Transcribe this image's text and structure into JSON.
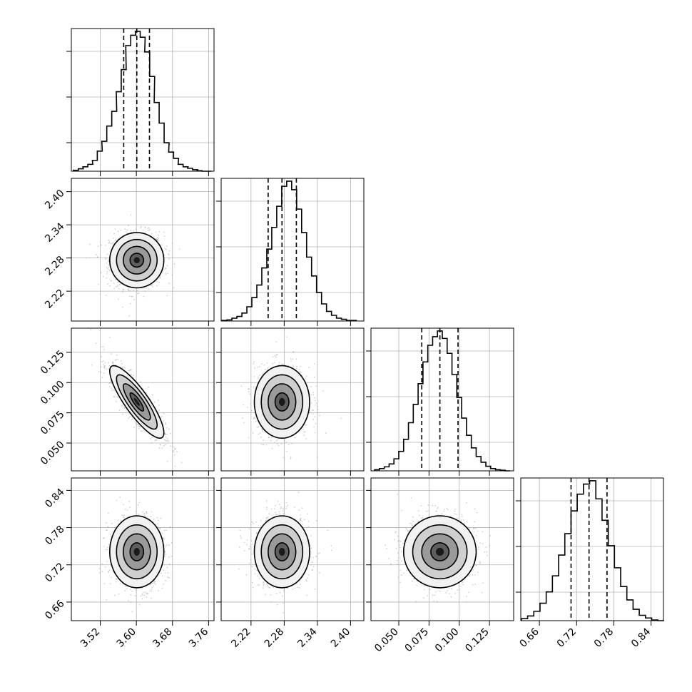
{
  "chart_data": {
    "type": "corner",
    "title": "",
    "colors": {
      "line": "#000000",
      "grid": "#b0b0b0",
      "scatter": "#a9a9a9",
      "density_low": "#d9d9d9",
      "density_high": "#000000"
    },
    "grid": true,
    "parameters": [
      {
        "index": 0,
        "range": [
          3.456,
          3.772
        ],
        "ticks": [
          3.52,
          3.6,
          3.68,
          3.76
        ],
        "tick_labels": [
          "3.52",
          "3.60",
          "3.68",
          "3.76"
        ],
        "quantiles": [
          3.572,
          3.601,
          3.629
        ],
        "mean": 3.601,
        "sd": 0.03,
        "hist_x": [
          3.466,
          3.477,
          3.487,
          3.498,
          3.508,
          3.519,
          3.529,
          3.54,
          3.551,
          3.561,
          3.572,
          3.582,
          3.593,
          3.603,
          3.614,
          3.624,
          3.635,
          3.645,
          3.656,
          3.667,
          3.677,
          3.688,
          3.698,
          3.709,
          3.719,
          3.73,
          3.74,
          3.751,
          3.761
        ],
        "hist_y": [
          2,
          5,
          9,
          14,
          22,
          41,
          61,
          92,
          122,
          162,
          207,
          256,
          277,
          285,
          273,
          243,
          193,
          140,
          98,
          58,
          39,
          26,
          14,
          9,
          6,
          3,
          1,
          0,
          0
        ]
      },
      {
        "index": 1,
        "range": [
          2.166,
          2.424
        ],
        "ticks": [
          2.22,
          2.28,
          2.34,
          2.4
        ],
        "tick_labels": [
          "2.22",
          "2.28",
          "2.34",
          "2.40"
        ],
        "quantiles": [
          2.251,
          2.276,
          2.302
        ],
        "mean": 2.276,
        "sd": 0.025,
        "hist_x": [
          2.172,
          2.181,
          2.19,
          2.199,
          2.208,
          2.217,
          2.226,
          2.235,
          2.244,
          2.253,
          2.262,
          2.271,
          2.28,
          2.289,
          2.298,
          2.307,
          2.316,
          2.325,
          2.334,
          2.343,
          2.352,
          2.361,
          2.37,
          2.379,
          2.388,
          2.397,
          2.406
        ],
        "hist_y": [
          1,
          2,
          5,
          8,
          14,
          25,
          41,
          63,
          93,
          126,
          164,
          201,
          236,
          245,
          230,
          196,
          155,
          112,
          79,
          50,
          30,
          17,
          10,
          5,
          3,
          1,
          1
        ]
      },
      {
        "index": 2,
        "range": [
          0.027,
          0.145
        ],
        "ticks": [
          0.05,
          0.075,
          0.1,
          0.125
        ],
        "tick_labels": [
          "0.050",
          "0.075",
          "0.100",
          "0.125"
        ],
        "quantiles": [
          0.069,
          0.084,
          0.099
        ],
        "mean": 0.084,
        "sd": 0.015,
        "hist_x": [
          0.032,
          0.036,
          0.04,
          0.044,
          0.048,
          0.052,
          0.056,
          0.06,
          0.064,
          0.068,
          0.072,
          0.076,
          0.08,
          0.084,
          0.088,
          0.092,
          0.096,
          0.1,
          0.104,
          0.108,
          0.112,
          0.116,
          0.12,
          0.124,
          0.128,
          0.132,
          0.136,
          0.14
        ],
        "hist_y": [
          2,
          4,
          7,
          12,
          21,
          34,
          55,
          84,
          116,
          152,
          190,
          219,
          234,
          244,
          231,
          205,
          168,
          128,
          92,
          62,
          40,
          25,
          15,
          8,
          4,
          2,
          1,
          0
        ]
      },
      {
        "index": 3,
        "range": [
          0.63,
          0.86
        ],
        "ticks": [
          0.66,
          0.72,
          0.78,
          0.84
        ],
        "tick_labels": [
          "0.66",
          "0.72",
          "0.78",
          "0.84"
        ],
        "quantiles": [
          0.711,
          0.74,
          0.769
        ],
        "mean": 0.741,
        "sd": 0.029,
        "hist_x": [
          0.636,
          0.646,
          0.656,
          0.666,
          0.676,
          0.686,
          0.696,
          0.706,
          0.716,
          0.726,
          0.736,
          0.746,
          0.756,
          0.766,
          0.776,
          0.786,
          0.796,
          0.806,
          0.816,
          0.826,
          0.836,
          0.846,
          0.856
        ],
        "hist_y": [
          3,
          7,
          14,
          26,
          43,
          67,
          98,
          130,
          164,
          189,
          204,
          209,
          182,
          150,
          112,
          79,
          51,
          31,
          17,
          8,
          4,
          1,
          0
        ]
      }
    ],
    "pairs": [
      {
        "x": 0,
        "y": 1,
        "corr": 0.0
      },
      {
        "x": 0,
        "y": 2,
        "corr": -0.85
      },
      {
        "x": 1,
        "y": 2,
        "corr": 0.0
      },
      {
        "x": 0,
        "y": 3,
        "corr": 0.0
      },
      {
        "x": 1,
        "y": 3,
        "corr": 0.0
      },
      {
        "x": 2,
        "y": 3,
        "corr": 0.0
      }
    ],
    "contour_levels_sigma": [
      0.5,
      1.0,
      1.5,
      2.0
    ]
  }
}
